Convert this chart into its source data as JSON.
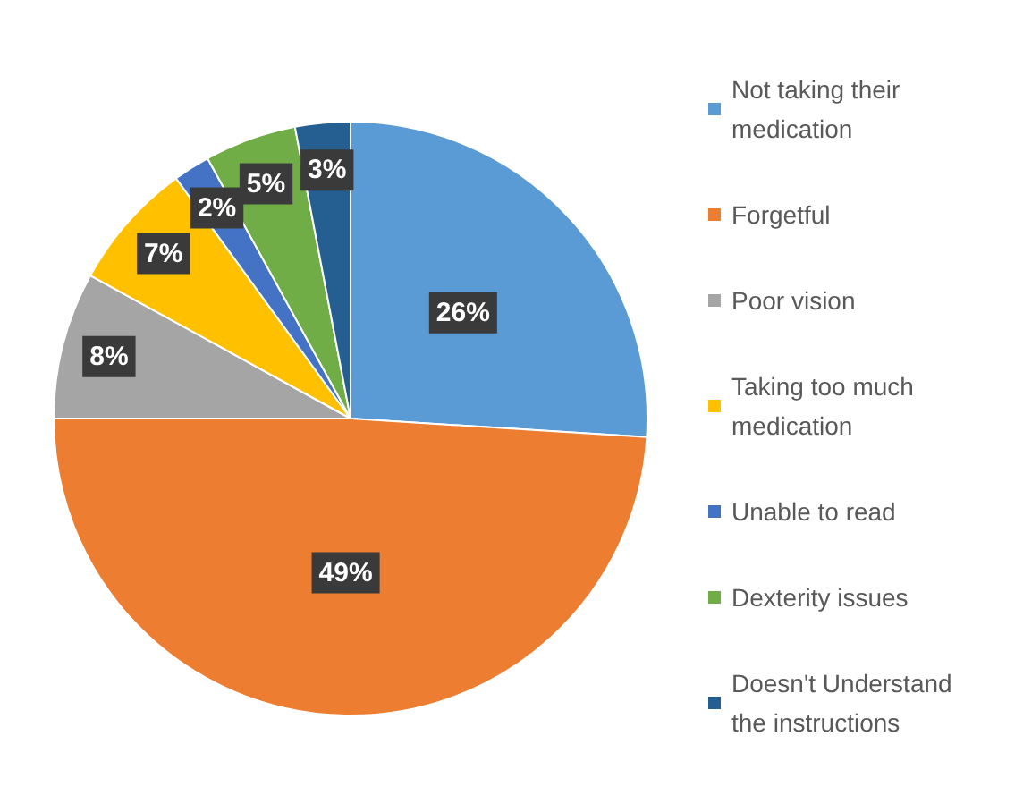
{
  "chart_data": {
    "type": "pie",
    "categories": [
      "Not taking their medication",
      "Forgetful",
      "Poor vision",
      "Taking too much medication",
      "Unable to read",
      "Dexterity issues",
      "Doesn't Understand the instructions"
    ],
    "values": [
      26,
      49,
      8,
      7,
      2,
      5,
      3
    ],
    "colors": [
      "#5b9bd5",
      "#ed7d31",
      "#a5a5a5",
      "#ffc000",
      "#4472c4",
      "#70ad47",
      "#255e91"
    ],
    "value_labels": [
      "26%",
      "49%",
      "8%",
      "7%",
      "2%",
      "5%",
      "3%"
    ],
    "legend": "right"
  }
}
